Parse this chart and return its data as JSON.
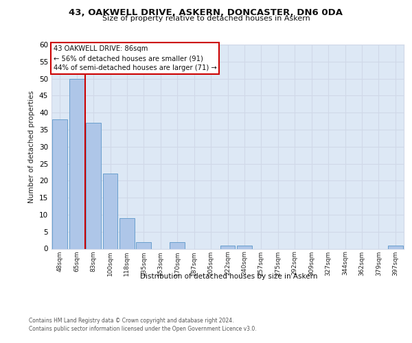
{
  "title_line1": "43, OAKWELL DRIVE, ASKERN, DONCASTER, DN6 0DA",
  "title_line2": "Size of property relative to detached houses in Askern",
  "xlabel": "Distribution of detached houses by size in Askern",
  "ylabel": "Number of detached properties",
  "footnote1": "Contains HM Land Registry data © Crown copyright and database right 2024.",
  "footnote2": "Contains public sector information licensed under the Open Government Licence v3.0.",
  "bin_labels": [
    "48sqm",
    "65sqm",
    "83sqm",
    "100sqm",
    "118sqm",
    "135sqm",
    "153sqm",
    "170sqm",
    "187sqm",
    "205sqm",
    "222sqm",
    "240sqm",
    "257sqm",
    "275sqm",
    "292sqm",
    "309sqm",
    "327sqm",
    "344sqm",
    "362sqm",
    "379sqm",
    "397sqm"
  ],
  "bin_values": [
    38,
    50,
    37,
    22,
    9,
    2,
    0,
    2,
    0,
    0,
    1,
    1,
    0,
    0,
    0,
    0,
    0,
    0,
    0,
    0,
    1
  ],
  "bar_color": "#aec6e8",
  "bar_edge_color": "#5a96c8",
  "annotation_line1": "43 OAKWELL DRIVE: 86sqm",
  "annotation_line2": "← 56% of detached houses are smaller (91)",
  "annotation_line3": "44% of semi-detached houses are larger (71) →",
  "red_line_color": "#cc0000",
  "annotation_box_edge": "#cc0000",
  "annotation_box_face": "#ffffff",
  "ylim": [
    0,
    60
  ],
  "yticks": [
    0,
    5,
    10,
    15,
    20,
    25,
    30,
    35,
    40,
    45,
    50,
    55,
    60
  ],
  "grid_color": "#d0d8e8",
  "background_color": "#dde8f5",
  "fig_background": "#ffffff",
  "red_line_bin_index": 1.5
}
